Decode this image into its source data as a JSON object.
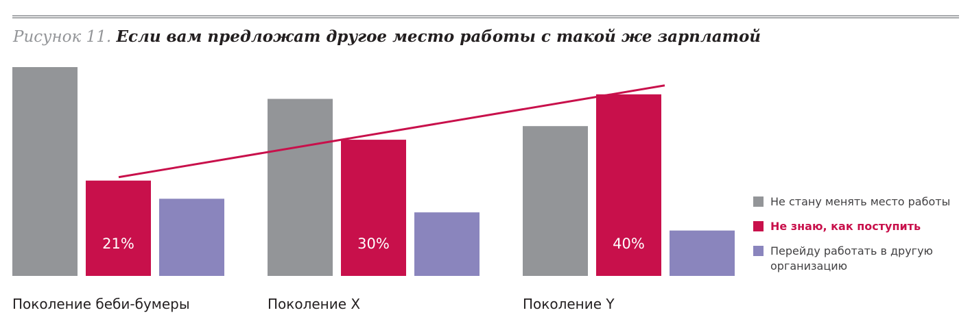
{
  "figure": {
    "label": "Рисунок 11.",
    "caption": "Если вам предложат другое место работы с такой же зарплатой"
  },
  "colors": {
    "stay": "#939598",
    "unsure": "#c8104b",
    "switch": "#8a85bd",
    "trend": "#c8104b"
  },
  "chart_data": {
    "type": "bar",
    "categories": [
      "Поколение беби-бумеры",
      "Поколение X",
      "Поколение Y"
    ],
    "series": [
      {
        "name": "Не стану менять место работы",
        "values": [
          46,
          39,
          33
        ],
        "color_key": "stay"
      },
      {
        "name": "Не знаю, как поступить",
        "values": [
          21,
          30,
          40
        ],
        "labels": [
          "21%",
          "30%",
          "40%"
        ],
        "color_key": "unsure"
      },
      {
        "name": "Перейду работать в другую организацию",
        "values": [
          17,
          14,
          10
        ],
        "color_key": "switch"
      }
    ],
    "trend_line": {
      "series": "Не знаю, как поступить",
      "from": 21,
      "to": 40
    },
    "ylim": [
      0,
      46
    ],
    "legend_position": "right",
    "grid": false
  }
}
